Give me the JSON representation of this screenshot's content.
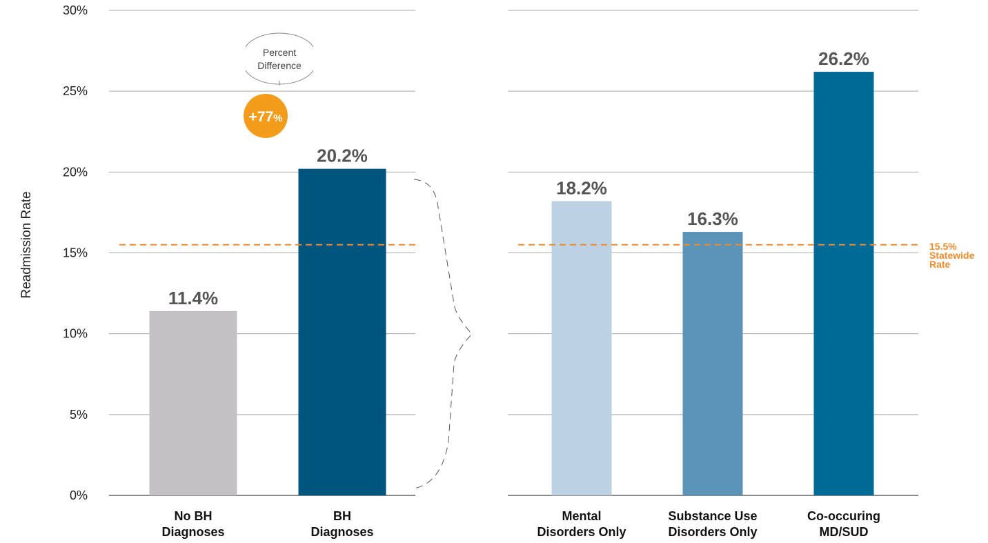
{
  "chart_data": [
    {
      "type": "bar",
      "categories": [
        "No BH Diagnoses",
        "BH Diagnoses"
      ],
      "category_lines": [
        [
          "No BH",
          "Diagnoses"
        ],
        [
          "BH",
          "Diagnoses"
        ]
      ],
      "values": [
        11.4,
        20.2
      ],
      "value_labels": [
        "11.4%",
        "20.2%"
      ],
      "colors": [
        "#c3c1c4",
        "#00557f"
      ],
      "ylabel": "Readmission Rate",
      "ylim": [
        0,
        30
      ],
      "yticks": [
        0,
        5,
        10,
        15,
        20,
        25,
        30
      ],
      "ytick_labels": [
        "0%",
        "5%",
        "10%",
        "15%",
        "20%",
        "25%",
        "30%"
      ],
      "annotation": {
        "label_lines": [
          "Percent",
          "Difference"
        ],
        "badge_main": "+77",
        "badge_suffix": "%",
        "color": "#f39c1c"
      },
      "grid": true
    },
    {
      "type": "bar",
      "categories": [
        "Mental Disorders Only",
        "Substance Use Disorders Only",
        "Co-occuring MD/SUD"
      ],
      "category_lines": [
        [
          "Mental",
          "Disorders Only"
        ],
        [
          "Substance Use",
          "Disorders Only"
        ],
        [
          "Co-occuring",
          "MD/SUD"
        ]
      ],
      "values": [
        18.2,
        16.3,
        26.2
      ],
      "value_labels": [
        "18.2%",
        "16.3%",
        "26.2%"
      ],
      "colors": [
        "#bcd1e1",
        "#5c94b8",
        "#006a96"
      ],
      "ylim": [
        0,
        30
      ],
      "grid": true
    }
  ],
  "reference_line": {
    "value": 15.5,
    "label_lines": [
      "15.5%",
      "Statewide",
      "Rate"
    ],
    "color": "#f08a2b"
  }
}
